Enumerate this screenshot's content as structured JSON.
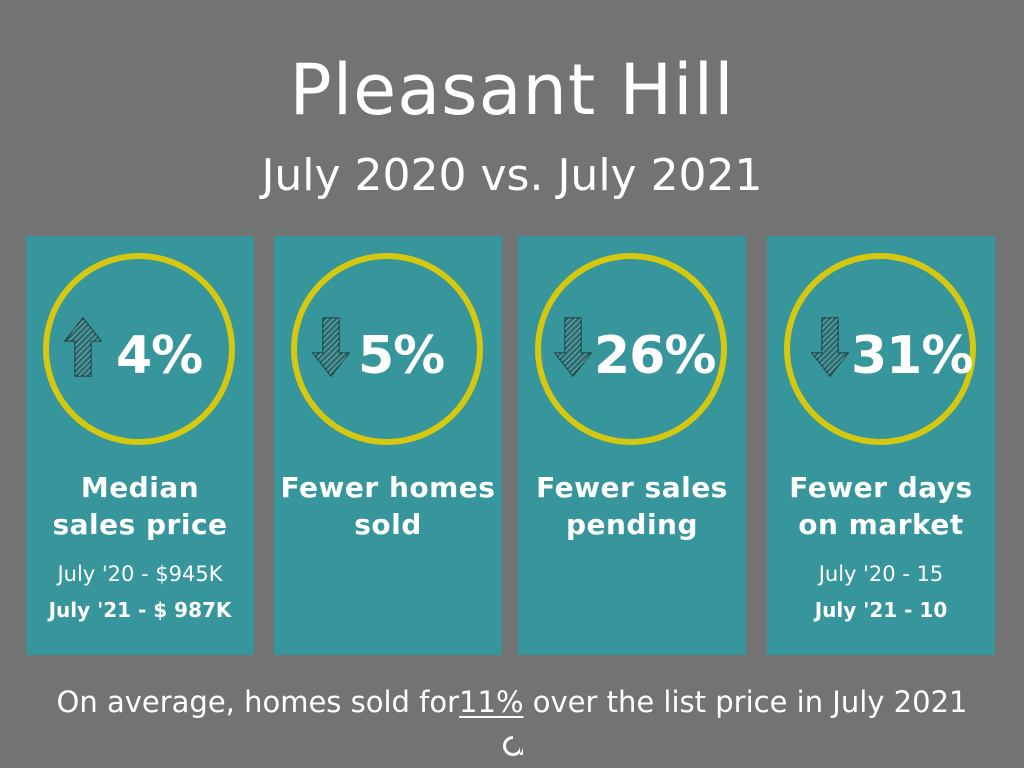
{
  "header": {
    "title": "Pleasant Hill",
    "subtitle": "July 2020 vs. July 2021"
  },
  "colors": {
    "background": "#737373",
    "card": "#37959c",
    "ring": "#d6c80f",
    "arrow": "#2c6f73"
  },
  "cards": [
    {
      "direction": "up",
      "icon": "arrow-up-icon",
      "percent": "4%",
      "label_line1": "Median",
      "label_line2": "sales price",
      "detail_line1": "July '20 - $945K",
      "detail_line2": "July '21 - $ 987K"
    },
    {
      "direction": "down",
      "icon": "arrow-down-icon",
      "percent": "5%",
      "label_line1": "Fewer homes",
      "label_line2": "sold"
    },
    {
      "direction": "down",
      "icon": "arrow-down-icon",
      "percent": "26%",
      "label_line1": "Fewer sales",
      "label_line2": "pending"
    },
    {
      "direction": "down",
      "icon": "arrow-down-icon",
      "percent": "31%",
      "label_line1": "Fewer days",
      "label_line2": "on market",
      "detail_line1": "July '20 - 15",
      "detail_line2": "July '21 - 10"
    }
  ],
  "footer": {
    "prefix": "On average, homes sold for",
    "highlight": "11%",
    "suffix": " over the list price in July 2021"
  },
  "logo": {
    "icon": "at-logo-icon"
  }
}
